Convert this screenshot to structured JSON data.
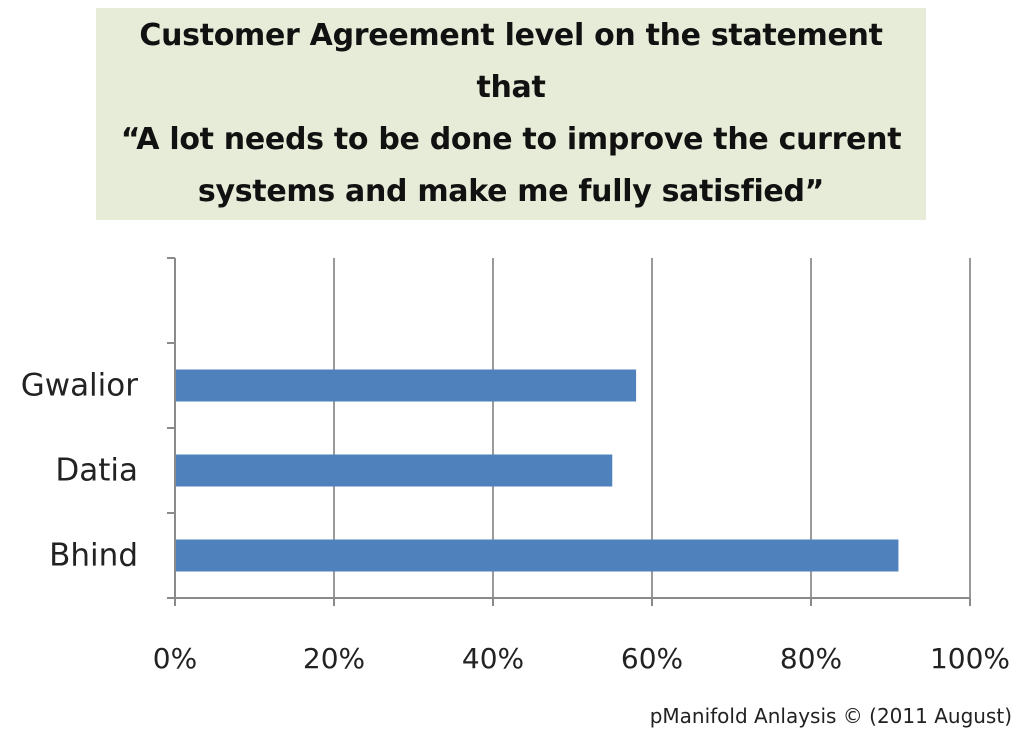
{
  "chart_data": {
    "type": "bar",
    "orientation": "horizontal",
    "title_lines": [
      "Customer Agreement level on the statement",
      "that",
      "“A lot needs to be done to improve the current",
      "systems and make me fully satisfied”"
    ],
    "categories": [
      "Gwalior",
      "Datia",
      "Bhind"
    ],
    "values": [
      58,
      55,
      91
    ],
    "x_ticks": [
      "0%",
      "20%",
      "40%",
      "60%",
      "80%",
      "100%"
    ],
    "xlim": [
      0,
      100
    ],
    "grid": true,
    "bar_color": "#4f81bd",
    "title_background": "#e6ecd8"
  },
  "credit": "pManifold Anlaysis © (2011 August)"
}
